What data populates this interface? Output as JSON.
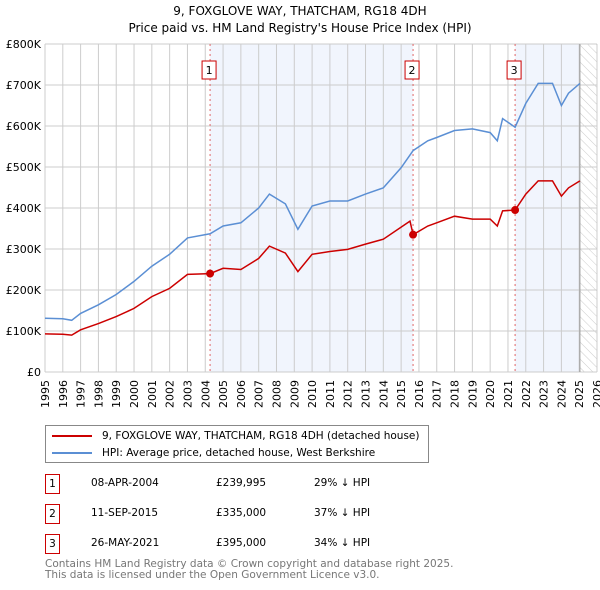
{
  "chart_data": {
    "type": "line",
    "title": "9, FOXGLOVE WAY, THATCHAM, RG18 4DH",
    "subtitle": "Price paid vs. HM Land Registry's House Price Index (HPI)",
    "xlim": [
      1995,
      2026
    ],
    "ylim": [
      0,
      800000
    ],
    "x_ticks": [
      "1995",
      "1996",
      "1997",
      "1998",
      "1999",
      "2000",
      "2001",
      "2002",
      "2003",
      "2004",
      "2005",
      "2006",
      "2007",
      "2008",
      "2009",
      "2010",
      "2011",
      "2012",
      "2013",
      "2014",
      "2015",
      "2016",
      "2017",
      "2018",
      "2019",
      "2020",
      "2021",
      "2022",
      "2023",
      "2024",
      "2025",
      "2026"
    ],
    "y_ticks": [
      {
        "v": 0,
        "label": "£0"
      },
      {
        "v": 100000,
        "label": "£100K"
      },
      {
        "v": 200000,
        "label": "£200K"
      },
      {
        "v": 300000,
        "label": "£300K"
      },
      {
        "v": 400000,
        "label": "£400K"
      },
      {
        "v": 500000,
        "label": "£500K"
      },
      {
        "v": 600000,
        "label": "£600K"
      },
      {
        "v": 700000,
        "label": "£700K"
      },
      {
        "v": 800000,
        "label": "£800K"
      }
    ],
    "grid": true,
    "series": [
      {
        "name": "9, FOXGLOVE WAY, THATCHAM, RG18 4DH (detached house)",
        "color": "#cc0000",
        "x": [
          1995,
          1996,
          1996.5,
          1997,
          1998,
          1999,
          2000,
          2001,
          2002,
          2003,
          2004.27,
          2005,
          2006,
          2007,
          2007.6,
          2008.5,
          2009.2,
          2010,
          2011,
          2012,
          2013,
          2014,
          2015.5,
          2015.67,
          2016.5,
          2017,
          2018,
          2019,
          2020,
          2020.4,
          2020.7,
          2021.4,
          2022,
          2022.7,
          2023.5,
          2024,
          2024.4,
          2025.04
        ],
        "y": [
          93000,
          92000,
          90000,
          103000,
          118000,
          135000,
          155000,
          184000,
          204000,
          238000,
          239995,
          253000,
          250000,
          277000,
          307000,
          290000,
          245000,
          287000,
          294000,
          299000,
          312000,
          324000,
          368000,
          335000,
          356000,
          364000,
          380000,
          373000,
          373000,
          356000,
          393000,
          395000,
          434000,
          466000,
          466000,
          429000,
          449000,
          466000
        ]
      },
      {
        "name": "HPI: Average price, detached house, West Berkshire",
        "color": "#5b8fd4",
        "x": [
          1995,
          1996,
          1996.5,
          1997,
          1998,
          1999,
          2000,
          2001,
          2002,
          2003,
          2004.27,
          2005,
          2006,
          2007,
          2007.6,
          2008.5,
          2009.2,
          2010,
          2011,
          2012,
          2013,
          2014,
          2015,
          2015.67,
          2016.5,
          2017,
          2018,
          2019,
          2020,
          2020.4,
          2020.7,
          2021.4,
          2022,
          2022.7,
          2023.5,
          2024,
          2024.4,
          2025.04
        ],
        "y": [
          131000,
          130000,
          126000,
          143000,
          164000,
          189000,
          221000,
          258000,
          287000,
          327000,
          337000,
          356000,
          364000,
          400000,
          434000,
          410000,
          348000,
          405000,
          417000,
          417000,
          434000,
          449000,
          498000,
          540000,
          564000,
          572000,
          589000,
          593000,
          584000,
          564000,
          618000,
          597000,
          655000,
          704000,
          704000,
          650000,
          680000,
          704000
        ]
      }
    ],
    "shaded_ranges": [
      [
        2004.27,
        2015.67
      ],
      [
        2021.4,
        2025.04
      ]
    ],
    "hatched_range": [
      2025.04,
      2026
    ],
    "sales": [
      {
        "n": "1",
        "x": 2004.27,
        "y": 239995,
        "date": "08-APR-2004",
        "price": "£239,995",
        "hpi": "29% ↓ HPI"
      },
      {
        "n": "2",
        "x": 2015.67,
        "y": 335000,
        "date": "11-SEP-2015",
        "price": "£335,000",
        "hpi": "37% ↓ HPI"
      },
      {
        "n": "3",
        "x": 2021.4,
        "y": 395000,
        "date": "26-MAY-2021",
        "price": "£395,000",
        "hpi": "34% ↓ HPI"
      }
    ]
  },
  "footer": {
    "line1": "Contains HM Land Registry data © Crown copyright and database right 2025.",
    "line2": "This data is licensed under the Open Government Licence v3.0."
  }
}
